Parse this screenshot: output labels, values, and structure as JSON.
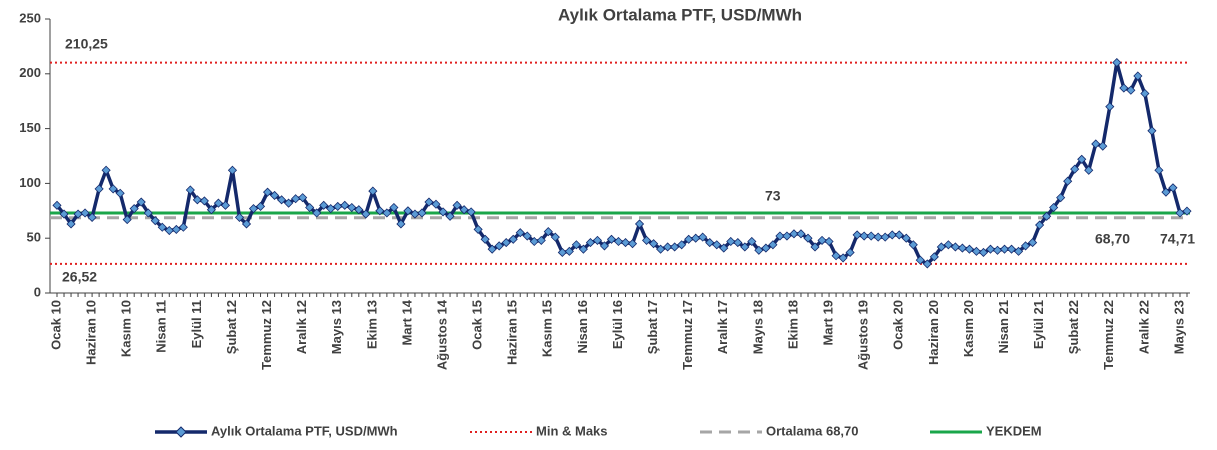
{
  "chart_data": {
    "type": "line",
    "title": "Aylık Ortalama PTF, USD/MWh",
    "categories": [
      "Ocak 10",
      null,
      null,
      null,
      null,
      "Haziran 10",
      null,
      null,
      null,
      null,
      "Kasım 10",
      null,
      null,
      null,
      null,
      "Nisan 11",
      null,
      null,
      null,
      null,
      "Eylül 11",
      null,
      null,
      null,
      null,
      "Şubat 12",
      null,
      null,
      null,
      null,
      "Temmuz 12",
      null,
      null,
      null,
      null,
      "Aralık 12",
      null,
      null,
      null,
      null,
      "Mayıs 13",
      null,
      null,
      null,
      null,
      "Ekim 13",
      null,
      null,
      null,
      null,
      "Mart 14",
      null,
      null,
      null,
      null,
      "Ağustos 14",
      null,
      null,
      null,
      null,
      "Ocak 15",
      null,
      null,
      null,
      null,
      "Haziran 15",
      null,
      null,
      null,
      null,
      "Kasım 15",
      null,
      null,
      null,
      null,
      "Nisan 16",
      null,
      null,
      null,
      null,
      "Eylül 16",
      null,
      null,
      null,
      null,
      "Şubat 17",
      null,
      null,
      null,
      null,
      "Temmuz 17",
      null,
      null,
      null,
      null,
      "Aralık 17",
      null,
      null,
      null,
      null,
      "Mayıs 18",
      null,
      null,
      null,
      null,
      "Ekim 18",
      null,
      null,
      null,
      null,
      "Mart 19",
      null,
      null,
      null,
      null,
      "Ağustos 19",
      null,
      null,
      null,
      null,
      "Ocak 20",
      null,
      null,
      null,
      null,
      "Haziran 20",
      null,
      null,
      null,
      null,
      "Kasım 20",
      null,
      null,
      null,
      null,
      "Nisan 21",
      null,
      null,
      null,
      null,
      "Eylül 21",
      null,
      null,
      null,
      null,
      "Şubat 22",
      null,
      null,
      null,
      null,
      "Temmuz 22",
      null,
      null,
      null,
      null,
      "Aralık 22",
      null,
      null,
      null,
      null,
      "Mayıs 23",
      null
    ],
    "series": [
      {
        "name": "Aylık Ortalama PTF, USD/MWh",
        "color": "#14296b",
        "marker_color": "#5b9bd5",
        "values": [
          80,
          72,
          63,
          72,
          73,
          69,
          95,
          112,
          95,
          91,
          67,
          77,
          83,
          73,
          66,
          60,
          57,
          58,
          60,
          94,
          85,
          84,
          76,
          82,
          80,
          112,
          69,
          63,
          77,
          79,
          92,
          89,
          85,
          82,
          86,
          87,
          78,
          73,
          80,
          77,
          79,
          80,
          78,
          76,
          72,
          93,
          75,
          73,
          78,
          63,
          75,
          72,
          73,
          83,
          81,
          74,
          70,
          80,
          76,
          74,
          58,
          49,
          40,
          43,
          46,
          49,
          55,
          52,
          47,
          48,
          56,
          51,
          37,
          38,
          44,
          40,
          46,
          48,
          43,
          49,
          47,
          46,
          45,
          63,
          48,
          45,
          40,
          42,
          42,
          44,
          49,
          50,
          51,
          46,
          44,
          41,
          47,
          46,
          42,
          47,
          39,
          41,
          44,
          52,
          52,
          54,
          54,
          50,
          42,
          48,
          47,
          34,
          32,
          37,
          53,
          52,
          52,
          51,
          51,
          53,
          53,
          50,
          44,
          30,
          26.52,
          33,
          42,
          44,
          42,
          41,
          40,
          38,
          37,
          40,
          39,
          40,
          40,
          38,
          43,
          46,
          62,
          70,
          78,
          87,
          102,
          113,
          122,
          112,
          136,
          134,
          170,
          210.25,
          187,
          185,
          198,
          182,
          148,
          112,
          92,
          96,
          73,
          74.71
        ],
        "value_labels": [
          null,
          null,
          null,
          null,
          null,
          null,
          null,
          null,
          null,
          null,
          null,
          null,
          null,
          null,
          null,
          null,
          null,
          null,
          null,
          null,
          null,
          null,
          null,
          null,
          null,
          null,
          null,
          null,
          null,
          null,
          null,
          null,
          null,
          null,
          null,
          null,
          null,
          null,
          null,
          null,
          null,
          null,
          null,
          null,
          null,
          null,
          null,
          null,
          null,
          null,
          null,
          null,
          null,
          null,
          null,
          null,
          null,
          null,
          null,
          null,
          null,
          null,
          null,
          null,
          null,
          null,
          null,
          null,
          null,
          null,
          null,
          null,
          null,
          null,
          null,
          null,
          null,
          null,
          null,
          null,
          null,
          null,
          null,
          null,
          null,
          null,
          null,
          null,
          null,
          null,
          null,
          null,
          null,
          null,
          null,
          null,
          null,
          null,
          null,
          null,
          null,
          null,
          null,
          null,
          null,
          null,
          null,
          null,
          null,
          null,
          null,
          null,
          null,
          null,
          null,
          null,
          null,
          null,
          null,
          null,
          null,
          null,
          null,
          null,
          null,
          null,
          null,
          null,
          null,
          null,
          null,
          null,
          null,
          null,
          null,
          null,
          null,
          null,
          null,
          null,
          null,
          null,
          null,
          null,
          null,
          null,
          null,
          null,
          null,
          null,
          null,
          null,
          null,
          null,
          null,
          null,
          null,
          null,
          null,
          null,
          null,
          "74,71"
        ]
      }
    ],
    "reference_lines": [
      {
        "name": "Min & Maks",
        "color": "#e02020",
        "style": "dotted",
        "values": [
          26.52,
          210.25
        ],
        "value_labels": [
          "26,52",
          "210,25"
        ]
      },
      {
        "name": "Ortalama 68,70",
        "color": "#a6a6a6",
        "style": "dashed",
        "values": [
          68.7
        ],
        "value_labels": [
          "68,70"
        ]
      },
      {
        "name": "YEKDEM",
        "color": "#1aa64a",
        "style": "solid",
        "values": [
          73
        ],
        "value_labels": [
          "73"
        ]
      }
    ],
    "ylim": [
      0,
      250
    ],
    "yticks": [
      0,
      50,
      100,
      150,
      200,
      250
    ],
    "grid": false,
    "legend": "bottom"
  }
}
